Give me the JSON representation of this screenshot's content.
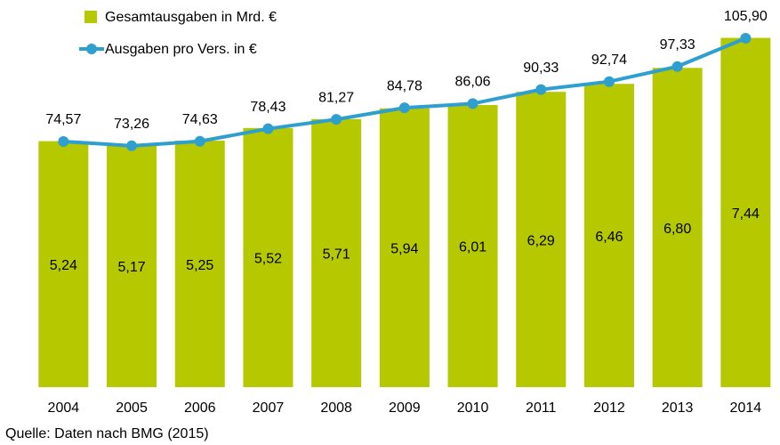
{
  "chart_data": {
    "type": "bar_line",
    "categories": [
      "2004",
      "2005",
      "2006",
      "2007",
      "2008",
      "2009",
      "2010",
      "2011",
      "2012",
      "2013",
      "2014"
    ],
    "series": [
      {
        "name": "Gesamtausgaben in Mrd. €",
        "type": "bar",
        "color": "#b5c800",
        "axis": "y",
        "values": [
          5.24,
          5.17,
          5.25,
          5.52,
          5.71,
          5.94,
          6.01,
          6.29,
          6.46,
          6.8,
          7.44
        ],
        "value_labels": [
          "5,24",
          "5,17",
          "5,25",
          "5,52",
          "5,71",
          "5,94",
          "6,01",
          "6,29",
          "6,46",
          "6,80",
          "7,44"
        ]
      },
      {
        "name": "Ausgaben pro Vers. in €",
        "type": "line",
        "color": "#2e9fcf",
        "axis": "y2",
        "values": [
          74.57,
          73.26,
          74.63,
          78.43,
          81.27,
          84.78,
          86.06,
          90.33,
          92.74,
          97.33,
          105.9
        ],
        "value_labels": [
          "74,57",
          "73,26",
          "74,63",
          "78,43",
          "81,27",
          "84,78",
          "86,06",
          "90,33",
          "92,74",
          "97,33",
          "105,90"
        ]
      }
    ],
    "ylim": [
      0,
      8
    ],
    "y2lim": [
      0,
      114
    ],
    "source": "Quelle: Daten nach BMG (2015)"
  }
}
